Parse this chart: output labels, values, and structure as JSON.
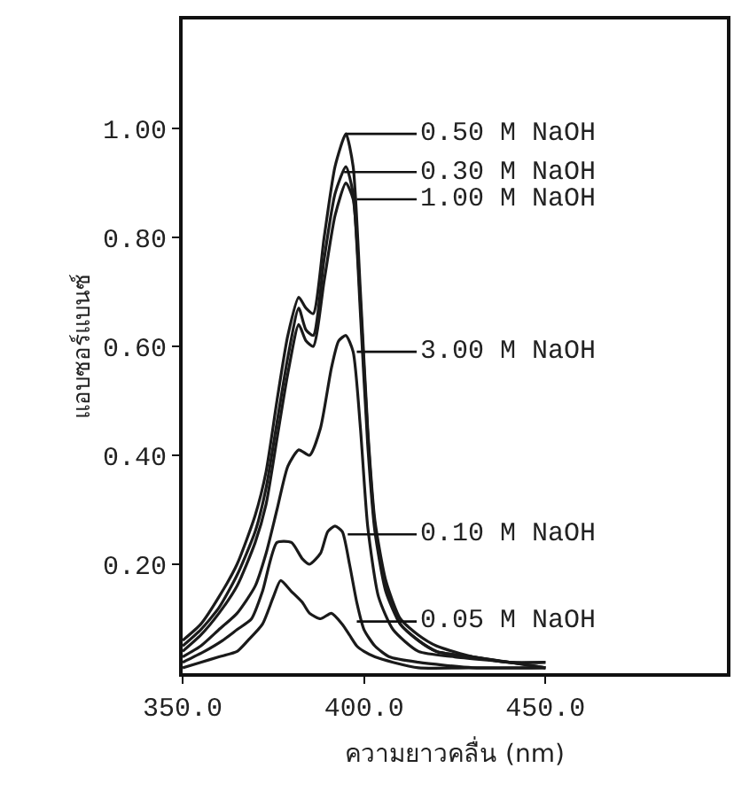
{
  "chart_data": {
    "type": "line",
    "xlabel": "ความยาวคลื่น (nm)",
    "ylabel": "แอบซอร์แบนซ์",
    "xlim": [
      350,
      500
    ],
    "ylim": [
      0,
      1.2
    ],
    "xticks": [
      {
        "value": 350,
        "label": "350.0"
      },
      {
        "value": 400,
        "label": "400.0"
      },
      {
        "value": 450,
        "label": "450.0"
      }
    ],
    "yticks": [
      {
        "value": 0.2,
        "label": "0.20"
      },
      {
        "value": 0.4,
        "label": "0.40"
      },
      {
        "value": 0.6,
        "label": "0.60"
      },
      {
        "value": 0.8,
        "label": "0.80"
      },
      {
        "value": 1.0,
        "label": "1.00"
      }
    ],
    "legend": false,
    "marker": "none",
    "line_style": "solid",
    "series": [
      {
        "color": "#1a1a1a",
        "x": [
          350,
          355,
          360,
          365,
          370,
          373,
          376,
          379,
          382,
          384,
          386,
          389,
          392,
          395,
          397,
          399,
          401,
          403,
          406,
          410,
          415,
          420,
          430,
          440,
          450
        ],
        "values": [
          0.06,
          0.09,
          0.14,
          0.2,
          0.29,
          0.37,
          0.5,
          0.62,
          0.69,
          0.67,
          0.66,
          0.8,
          0.93,
          0.99,
          0.93,
          0.7,
          0.45,
          0.28,
          0.17,
          0.1,
          0.07,
          0.05,
          0.03,
          0.02,
          0.02
        ]
      },
      {
        "color": "#1a1a1a",
        "x": [
          350,
          355,
          360,
          365,
          370,
          373,
          376,
          379,
          382,
          384,
          386,
          389,
          392,
          395,
          397,
          399,
          401,
          403,
          406,
          410,
          415,
          420,
          430,
          440,
          450
        ],
        "values": [
          0.05,
          0.08,
          0.12,
          0.18,
          0.26,
          0.34,
          0.46,
          0.58,
          0.67,
          0.63,
          0.62,
          0.76,
          0.88,
          0.93,
          0.88,
          0.66,
          0.42,
          0.26,
          0.15,
          0.09,
          0.06,
          0.04,
          0.03,
          0.02,
          0.02
        ]
      },
      {
        "color": "#1a1a1a",
        "x": [
          350,
          355,
          360,
          365,
          370,
          373,
          376,
          379,
          382,
          384,
          386,
          389,
          392,
          395,
          397,
          399,
          401,
          403,
          406,
          410,
          415,
          420,
          430,
          440,
          450
        ],
        "values": [
          0.04,
          0.07,
          0.11,
          0.16,
          0.24,
          0.31,
          0.43,
          0.55,
          0.64,
          0.61,
          0.6,
          0.72,
          0.84,
          0.9,
          0.87,
          0.68,
          0.44,
          0.27,
          0.16,
          0.09,
          0.06,
          0.04,
          0.03,
          0.02,
          0.01
        ]
      },
      {
        "color": "#1a1a1a",
        "x": [
          350,
          355,
          360,
          365,
          370,
          373,
          376,
          379,
          382,
          385,
          388,
          391,
          393,
          395,
          397,
          399,
          401,
          404,
          408,
          415,
          425,
          440,
          450
        ],
        "values": [
          0.03,
          0.05,
          0.08,
          0.11,
          0.16,
          0.22,
          0.3,
          0.38,
          0.41,
          0.4,
          0.45,
          0.56,
          0.61,
          0.62,
          0.59,
          0.45,
          0.27,
          0.14,
          0.08,
          0.04,
          0.03,
          0.02,
          0.01
        ]
      },
      {
        "color": "#1a1a1a",
        "x": [
          350,
          356,
          361,
          365,
          369,
          372,
          376,
          380,
          383,
          385,
          388,
          390,
          392,
          394,
          396,
          398,
          400,
          403,
          407,
          415,
          430,
          450
        ],
        "values": [
          0.02,
          0.04,
          0.06,
          0.08,
          0.1,
          0.15,
          0.24,
          0.24,
          0.21,
          0.2,
          0.22,
          0.26,
          0.27,
          0.26,
          0.2,
          0.13,
          0.08,
          0.05,
          0.03,
          0.02,
          0.01,
          0.01
        ]
      },
      {
        "color": "#1a1a1a",
        "x": [
          350,
          355,
          360,
          365,
          368,
          372,
          375,
          377,
          380,
          383,
          385,
          388,
          391,
          394,
          396,
          398,
          400,
          403,
          408,
          415,
          430,
          450
        ],
        "values": [
          0.01,
          0.02,
          0.03,
          0.04,
          0.06,
          0.09,
          0.14,
          0.17,
          0.15,
          0.13,
          0.11,
          0.1,
          0.11,
          0.09,
          0.07,
          0.05,
          0.04,
          0.03,
          0.02,
          0.01,
          0.01,
          0.01
        ]
      }
    ],
    "annotations": [
      {
        "text": "0.50 M NaOH",
        "x": 395,
        "y": 0.99
      },
      {
        "text": "0.30 M NaOH",
        "x": 394.5,
        "y": 0.92
      },
      {
        "text": "1.00 M NaOH",
        "x": 398,
        "y": 0.87
      },
      {
        "text": "3.00 M NaOH",
        "x": 398,
        "y": 0.59
      },
      {
        "text": "0.10 M NaOH",
        "x": 395.5,
        "y": 0.255
      },
      {
        "text": "0.05 M NaOH",
        "x": 398,
        "y": 0.095
      }
    ]
  }
}
